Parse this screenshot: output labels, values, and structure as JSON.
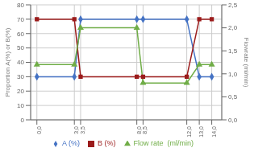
{
  "chart_data": {
    "type": "line",
    "x": [
      0.0,
      3.0,
      3.5,
      8.0,
      8.5,
      12.0,
      13.0,
      14.0
    ],
    "xlim": [
      -0.5,
      14.8
    ],
    "xticks": [
      {
        "value": 0.0,
        "label": "0,0"
      },
      {
        "value": 3.0,
        "label": "3,0"
      },
      {
        "value": 3.5,
        "label": "3,5"
      },
      {
        "value": 8.0,
        "label": "8,0"
      },
      {
        "value": 8.5,
        "label": "8,5"
      },
      {
        "value": 12.0,
        "label": "12,0"
      },
      {
        "value": 13.0,
        "label": "13,0"
      },
      {
        "value": 14.0,
        "label": "14,0"
      }
    ],
    "ylabel": "Proportion A(%) or B(%)",
    "y2label": "Flowrate (ml/min)",
    "ylim": [
      0,
      80
    ],
    "yticks": [
      0,
      10,
      20,
      30,
      40,
      50,
      60,
      70,
      80
    ],
    "y2lim": [
      0,
      2.5
    ],
    "y2ticks": [
      {
        "value": 0,
        "label": "0,0"
      },
      {
        "value": 0.5,
        "label": "0,5"
      },
      {
        "value": 1.0,
        "label": "1,0"
      },
      {
        "value": 1.5,
        "label": "1,5"
      },
      {
        "value": 2.0,
        "label": "2,0"
      },
      {
        "value": 2.5,
        "label": "2,5"
      }
    ],
    "series": [
      {
        "name": "A (%)",
        "color": "#4472C4",
        "marker": "diamond",
        "values": [
          30,
          30,
          70,
          70,
          70,
          70,
          30,
          30
        ]
      },
      {
        "name": "B (%)",
        "color": "#9B1B1B",
        "marker": "square",
        "values": [
          70,
          70,
          30,
          30,
          30,
          30,
          70,
          70
        ]
      },
      {
        "name": "Flow rate  (ml/min)",
        "color": "#70AD47",
        "marker": "triangle",
        "axis": "y2",
        "values": [
          1.2,
          1.2,
          2.0,
          2.0,
          0.8,
          0.8,
          1.2,
          1.2
        ]
      }
    ],
    "grid": true,
    "legend": "bottom"
  }
}
